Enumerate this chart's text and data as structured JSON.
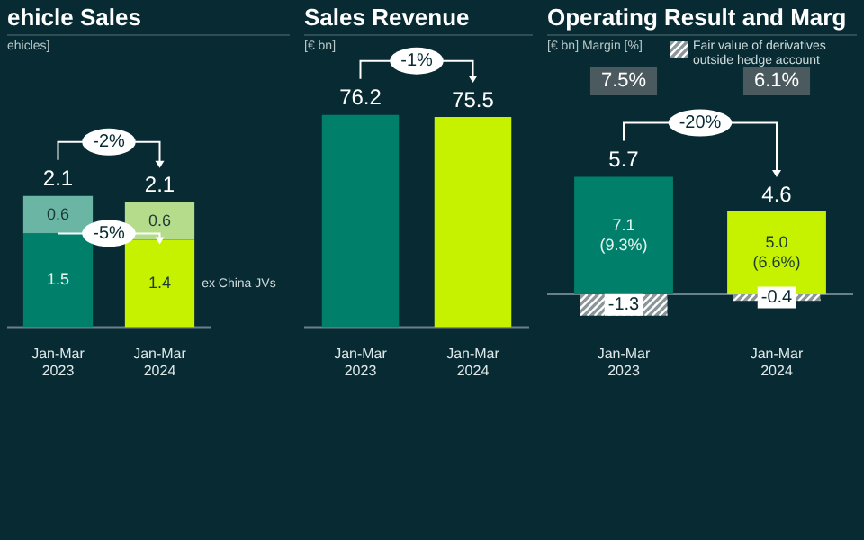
{
  "chart_data": [
    {
      "type": "bar",
      "title": "ehicle Sales",
      "subtitle": "ehicles]",
      "categories": [
        "Jan-Mar\n2023",
        "Jan-Mar\n2024"
      ],
      "stacked": true,
      "data_labels": true,
      "totals": [
        "2.1",
        "2.1"
      ],
      "series": [
        {
          "name": "ex China JVs",
          "colors": [
            "#00806b",
            "#c6f200"
          ],
          "values": [
            1.5,
            1.4
          ]
        },
        {
          "colors": [
            "#6bb5a5",
            "#b5dc8a"
          ],
          "values": [
            0.6,
            0.6
          ]
        }
      ],
      "annotations": [
        "-2%",
        {
          "text": "-5%",
          "y": 1.5
        }
      ]
    },
    {
      "type": "bar",
      "title": "Sales Revenue",
      "subtitle": "[€ bn]",
      "categories": [
        "Jan-Mar\n2023",
        "Jan-Mar\n2024"
      ],
      "data_labels": true,
      "values": [
        76.2,
        75.5
      ],
      "colors": [
        "#00806b",
        "#c6f200"
      ],
      "annotations": [
        "-1%"
      ]
    },
    {
      "type": "bar",
      "title": "Operating Result and Marg",
      "subtitle": "[€ bn] Margin [%]",
      "categories": [
        "Jan-Mar\n2023",
        "Jan-Mar\n2024"
      ],
      "legend": "top right",
      "totals": [
        "5.7",
        "4.6"
      ],
      "series": [
        {
          "colors": [
            "#00806b",
            "#c6f200"
          ],
          "values": [
            7.1,
            5.0
          ],
          "value_labels": [
            "7.1\n(9.3%)",
            "5.0\n(6.6%)"
          ]
        },
        {
          "name": "Fair value of derivatives outside hedge account",
          "color": "#8a9698",
          "values": [
            -1.3,
            -0.4
          ],
          "value_labels": [
            "-1.3",
            "-0.4"
          ]
        }
      ],
      "annotations": [
        "7.5%",
        "6.1%",
        "-20%"
      ]
    }
  ]
}
